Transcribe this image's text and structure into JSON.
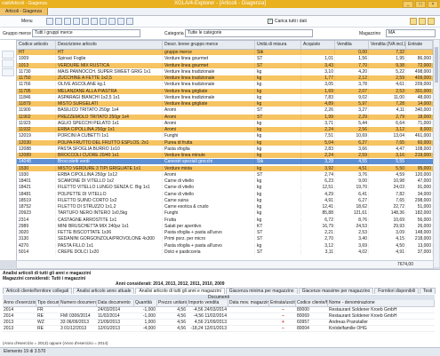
{
  "window": {
    "left_title": "ciali\\Articoli - Giagenza",
    "title": "XGLA/4-Explorer  -  [Articoli - Giagenza]",
    "buttons": [
      "_",
      "□",
      "×"
    ]
  },
  "doc_tab": "Articoli - Giagenza",
  "toolbar": {
    "menu_label": "Menu",
    "checkbox_label": "Carica tutti i dati"
  },
  "filters": {
    "gruppo_label": "Gruppo merce",
    "gruppo_value": "Tutti i gruppi merce",
    "categoria_label": "Categoria",
    "categoria_value": "Tutte le categorie",
    "magazzino_label": "Magazzino",
    "magazzino_value": "MA"
  },
  "grid": {
    "headers": [
      "Codice articolo",
      "Descrizione articolo",
      "Descr. breve gruppo merce",
      "Unità di misura",
      "Acquisto",
      "Vendita",
      "Vendita (IVA incl.)",
      "Entrate"
    ],
    "rows": [
      {
        "style": "o",
        "c": [
          "HT",
          "HT",
          "gruppo merce",
          "Stk",
          "",
          "0,00",
          "7,32",
          ""
        ]
      },
      {
        "style": "w",
        "c": [
          "1009",
          "Spinaci Foglie",
          "Verdure linea gourmet",
          "ST",
          "1,01",
          "1,56",
          "1,95",
          "86,000"
        ]
      },
      {
        "style": "o",
        "c": [
          "1013",
          "VERDURE MIX RUSTICA",
          "Verdure linea gourmet",
          "ST",
          "3,43",
          "7,70",
          "9,38",
          "72,000"
        ]
      },
      {
        "style": "w",
        "c": [
          "11730",
          "MAIS PANNOCCH. SUPER SWEET GRIG   1x1",
          "Verdure linea tradizionale",
          "kg",
          "3,10",
          "4,20",
          "5,22",
          "498,000"
        ]
      },
      {
        "style": "o",
        "c": [
          "11750",
          "ZUCCHINE A FETTE             1x2,5",
          "Verdure linea tradizionale",
          "kg",
          "1,77",
          "2,12",
          "2,59",
          "409,000"
        ]
      },
      {
        "style": "w",
        "c": [
          "11766",
          "OLIVE ASCOLANE  kg.1",
          "Verdure linea tradizionale",
          "kg",
          "3,05",
          "3,78",
          "4,61",
          "209,000"
        ]
      },
      {
        "style": "o",
        "c": [
          "11795",
          "MELANZANE ALLA PIASTRA",
          "Verdure linea grigliate",
          "kg",
          "1,69",
          "2,07",
          "2,53",
          "301,000"
        ]
      },
      {
        "style": "w",
        "c": [
          "11846",
          "ASPARAGI BIANCHI 1x2,5        1x1",
          "Verdure linea tradizionale",
          "kg",
          "7,83",
          "9,02",
          "11,00",
          "48,000"
        ]
      },
      {
        "style": "o",
        "c": [
          "11879",
          "MISTO SURGELATI",
          "Verdure linea grigliate",
          "kg",
          "4,89",
          "5,97",
          "7,28",
          "14,000"
        ]
      },
      {
        "style": "w",
        "c": [
          "11900",
          "BASILICO TRITATO 250gr       1x4",
          "Aromi",
          "ST",
          "2,26",
          "3,27",
          "4,11",
          "340,000"
        ]
      },
      {
        "style": "o",
        "c": [
          "11902",
          "PREZZEMOLO TRITATO 250gr    1x4",
          "Aromi",
          "ST",
          "1,99",
          "2,29",
          "2,79",
          "18,000"
        ]
      },
      {
        "style": "w",
        "c": [
          "11923",
          "AGLIO SPECCHI PELATO          1x1",
          "Aromi",
          "kg",
          "3,71",
          "5,44",
          "6,64",
          "71,000"
        ]
      },
      {
        "style": "o",
        "c": [
          "11932",
          "ERBA CIPOLLINA 250gr        1x1",
          "Aromi",
          "kg",
          "2,24",
          "2,56",
          "3,12",
          "8,000"
        ]
      },
      {
        "style": "w",
        "c": [
          "12019",
          "PORCINI A CUBETTI              1x1",
          "Funghi",
          "kg",
          "7,51",
          "10,69",
          "13,04",
          "461,000"
        ]
      },
      {
        "style": "o",
        "c": [
          "12030",
          "POLPA FRUTTO DEL FRUTTO ESPLOS.  2x1",
          "Purea di frutta",
          "kg",
          "5,04",
          "6,27",
          "7,65",
          "60,000"
        ]
      },
      {
        "style": "w",
        "c": [
          "12088",
          "PASTA SFOGLIA BURRO             1x10",
          "Pasta sfoglia",
          "kg",
          "2,83",
          "3,66",
          "4,47",
          "108,000"
        ]
      },
      {
        "style": "o",
        "c": [
          "12089",
          "BROCCOLI CUORE 20/40          1x1",
          "Verdure linea minute",
          "kg",
          "2,24",
          "2,59",
          "3,16",
          "219,000"
        ]
      },
      {
        "style": "s",
        "c": [
          "14048",
          "Broccoletti verdi",
          "Canestri speziali grocchi",
          "Stk",
          "3,28",
          "4,55",
          "5,55",
          ""
        ]
      },
      {
        "style": "o",
        "c": [
          "1530",
          "MISTO VERDURE 3 TIPI GRIGLIATE   1x1",
          "Verdure mista",
          "kg",
          "3,92",
          "4,51",
          "5,50",
          "95,000"
        ]
      },
      {
        "style": "w",
        "c": [
          "1930",
          "ERBA CIPOLLINA 250gr         1x12",
          "Aromi",
          "ST",
          "2,74",
          "3,76",
          "4,59",
          "120,000"
        ]
      },
      {
        "style": "w",
        "c": [
          "18401",
          "SCAMONE DI VITELLO            1x2",
          "Carne di vitello",
          "kg",
          "6,23",
          "9,00",
          "10,98",
          "47,000"
        ]
      },
      {
        "style": "w",
        "c": [
          "18421",
          "FILETTO VITELLO LUNGO SENZA C. Big  1x1",
          "Carne di vitello",
          "kg",
          "12,51",
          "19,70",
          "24,03",
          "91,000"
        ]
      },
      {
        "style": "w",
        "c": [
          "18481",
          "POLPETTE DI VITELLO",
          "Carne di vitello",
          "kg",
          "4,29",
          "6,41",
          "7,82",
          "34,000"
        ]
      },
      {
        "style": "w",
        "c": [
          "18519",
          "FILETTO SUINO CORTO          1x2",
          "Carne suina",
          "kg",
          "4,91",
          "6,27",
          "7,65",
          "298,000"
        ]
      },
      {
        "style": "w",
        "c": [
          "18752",
          "FILETTO DI STRUZZO          1x1,2",
          "Carne esotica & crudo",
          "kg",
          "12,41",
          "18,62",
          "22,72",
          "51,000"
        ]
      },
      {
        "style": "w",
        "c": [
          "20923",
          "TARTUFO NERO INTERO        1x0,5kg",
          "Funghi",
          "kg",
          "85,88",
          "121,61",
          "148,36",
          "182,000"
        ]
      },
      {
        "style": "w",
        "c": [
          "2314",
          "CASTAGNE ARROSTITE           1x1",
          "Frutta",
          "kg",
          "6,72",
          "8,76",
          "10,69",
          "56,000"
        ]
      },
      {
        "style": "w",
        "c": [
          "2989",
          "MINI BRUSCHETTA MIX 240pz       1x1",
          "Salati per aperitivo",
          "KT",
          "16,79",
          "24,53",
          "29,93",
          "26,000"
        ]
      },
      {
        "style": "w",
        "c": [
          "3020",
          "FETTE BISCOTTATE               1x36",
          "Pasta sfoglia + pasta all'uovo",
          "ST",
          "2,21",
          "2,53",
          "3,09",
          "148,000"
        ]
      },
      {
        "style": "w",
        "c": [
          "3130",
          "SEDANINI GORGONZOLA/PROVOLONE   4x300",
          "Primi porz. per micro",
          "ST",
          "2,70",
          "3,40",
          "4,15",
          "218,000"
        ]
      },
      {
        "style": "w",
        "c": [
          "4270",
          "PASTA FILLO                    1x1",
          "Pasta sfoglia + pasta all'uovo",
          "kg",
          "3,12",
          "3,69",
          "4,50",
          "13,000"
        ]
      },
      {
        "style": "w",
        "c": [
          "5014",
          "CREPE DOLCI        1x20",
          "Dolci e pasticceria",
          "ST",
          "3,11",
          "4,02",
          "4,91",
          "37,000"
        ]
      }
    ],
    "total_value": "7674,00"
  },
  "analysis": {
    "line1": "Analisi articoli di tutti gli anni e magazzini",
    "line2": "Magazzini considerati: Tutti i magazzini",
    "line3": "Anni considerati: 2014, 2013, 2012, 2011, 2010, 2009",
    "tabs": [
      "Articoli cliente/fornitore collegati",
      "Analisi articolo anno attuale",
      "Analisi articolo di tutti gli anni e magazzini",
      "Giacenza minima per magazzino",
      "Giacenze massime per magazzino",
      "Fornitori disponibili",
      "Testi"
    ],
    "documents_label": "Documenti",
    "headers": [
      "Anno d'esercizio",
      "Tipo documento",
      "Numero documento",
      "Data documento",
      "Quantità",
      "Prezzo unitario",
      "Importo vendita",
      "Data mov. magazzino",
      "Entrata/uscita",
      "Codice cliente/forn.",
      "Nome - denominazione"
    ],
    "rows": [
      [
        "2014",
        "FR",
        "",
        "24/03/2014",
        "-1,000",
        "4,56",
        "-4,56 24/03/2014",
        "",
        "–",
        "80000",
        "Restaurant Soldener Kroeb GmbH"
      ],
      [
        "2014",
        "RE",
        "FMI 0306/2014",
        "11/02/2014",
        "-1,000",
        "4,56",
        "-4,56 11/02/2014",
        "",
        "–",
        "80069",
        "Restaurant Soldener Kroeb GmbH"
      ],
      [
        "2013",
        "WZ",
        "33 06/09/2013",
        "21/09/2013",
        "1,000",
        "4,56",
        "4,56 21/09/2013",
        "",
        "+",
        "60957",
        "Andreas Pranstaller"
      ],
      [
        "2013",
        "RE",
        "3 01/12/2013",
        "12/01/2013",
        "-4,000",
        "4,56",
        "-18,24 12/01/2013",
        "",
        "–",
        "80004",
        "Knödelfamilie OHG"
      ]
    ],
    "footer_note": "(Anno d'esercizio = 2013) oppure (Anno d'esercizio = 2014)"
  },
  "status": {
    "text": "Elemento 19 di 3.570"
  }
}
